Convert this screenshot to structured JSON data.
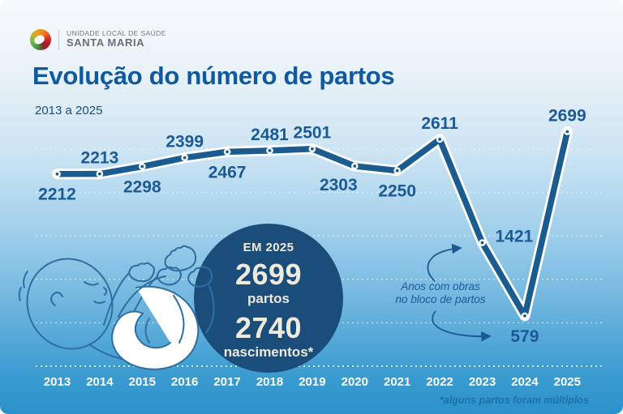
{
  "logo": {
    "line1": "UNIDADE LOCAL DE SAÚDE",
    "line2": "SANTA MARIA"
  },
  "chart_data": {
    "type": "line",
    "title": "Evolução do número de partos",
    "subtitle": "2013 a 2025",
    "x": [
      "2013",
      "2014",
      "2015",
      "2016",
      "2017",
      "2018",
      "2019",
      "2020",
      "2021",
      "2022",
      "2023",
      "2024",
      "2025"
    ],
    "values": [
      2212,
      2213,
      2298,
      2399,
      2467,
      2481,
      2501,
      2303,
      2250,
      2611,
      1421,
      579,
      2699
    ],
    "ylim": [
      0,
      2800
    ],
    "gridline_values": [
      500,
      1000,
      1500,
      2000,
      2500
    ],
    "grid": "dashed-white",
    "legend": "none",
    "line_color": "#1a5c90",
    "point_color": "#ffffff",
    "label_positions": [
      "below",
      "above",
      "below",
      "above",
      "below",
      "above",
      "above",
      "below-left",
      "below",
      "above",
      "right",
      "below",
      "above"
    ]
  },
  "highlight": {
    "heading": "EM 2025",
    "births_value": "2699",
    "births_label": "partos",
    "newborns_value": "2740",
    "newborns_label": "nascimentos*"
  },
  "annotation": {
    "line1": "Anos com obras",
    "line2": "no bloco de partos"
  },
  "footnote": "*alguns partos foram múltiplos",
  "colors": {
    "title_blue": "#0f59a1",
    "line_blue": "#1a5c90",
    "label_blue": "#1c5a96",
    "circle_navy": "#1b4d7a",
    "cream_text": "#efeadc",
    "background_top": "#f7fafc",
    "background_bottom": "#2b92c9"
  }
}
